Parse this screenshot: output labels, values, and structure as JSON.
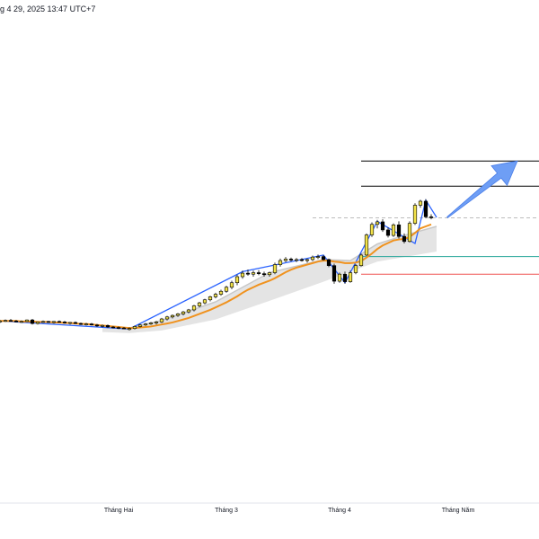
{
  "header": {
    "timestamp": "g 4 29, 2025 13:47 UTC+7"
  },
  "colors": {
    "candle_up": "#f2e24a",
    "candle_down": "#000000",
    "wick": "#000000",
    "ema_line": "#f0921e",
    "band_fill": "#d9d9d9",
    "band_edge": "#c8c8c8",
    "zigzag": "#2962ff",
    "level_black": "#000000",
    "level_green": "#26a69a",
    "level_red": "#ef5350",
    "level_dashed": "#bdbdbd",
    "arrow_fill": "#6e9ef5"
  },
  "chart_data": {
    "type": "candlestick",
    "x_axis_labels": [
      {
        "label": "Tháng Hai",
        "index": 22
      },
      {
        "label": "Tháng 3",
        "index": 42
      },
      {
        "label": "Tháng 4",
        "index": 63
      },
      {
        "label": "Tháng Năm",
        "index": 85
      }
    ],
    "ylim": [
      0,
      100
    ],
    "candles": [
      [
        36.0,
        36.4,
        35.8,
        36.2
      ],
      [
        36.2,
        36.5,
        36.0,
        36.3
      ],
      [
        36.3,
        36.6,
        36.1,
        36.2
      ],
      [
        36.2,
        36.4,
        35.9,
        36.0
      ],
      [
        36.0,
        36.3,
        35.8,
        36.1
      ],
      [
        36.1,
        36.5,
        36.0,
        36.4
      ],
      [
        36.4,
        36.6,
        35.5,
        35.7
      ],
      [
        35.7,
        36.1,
        35.5,
        36.0
      ],
      [
        36.0,
        36.3,
        35.8,
        36.1
      ],
      [
        36.1,
        36.2,
        35.8,
        35.9
      ],
      [
        35.9,
        36.2,
        35.7,
        36.1
      ],
      [
        36.1,
        36.3,
        35.9,
        36.0
      ],
      [
        36.0,
        36.2,
        35.7,
        35.8
      ],
      [
        35.8,
        36.0,
        35.5,
        35.9
      ],
      [
        35.9,
        36.1,
        35.6,
        35.7
      ],
      [
        35.7,
        35.9,
        35.4,
        35.5
      ],
      [
        35.5,
        35.8,
        35.3,
        35.6
      ],
      [
        35.6,
        35.8,
        35.3,
        35.4
      ],
      [
        35.4,
        35.6,
        35.0,
        35.2
      ],
      [
        35.2,
        35.5,
        34.9,
        35.3
      ],
      [
        35.3,
        35.5,
        34.8,
        35.0
      ],
      [
        35.0,
        35.2,
        34.7,
        34.9
      ],
      [
        34.9,
        35.1,
        34.6,
        34.8
      ],
      [
        34.8,
        35.0,
        34.6,
        34.7
      ],
      [
        34.5,
        34.9,
        34.3,
        34.7
      ],
      [
        34.7,
        35.3,
        34.5,
        35.1
      ],
      [
        35.1,
        35.6,
        34.9,
        35.4
      ],
      [
        35.4,
        35.8,
        35.2,
        35.6
      ],
      [
        35.6,
        36.0,
        35.4,
        35.8
      ],
      [
        35.8,
        36.2,
        35.5,
        36.0
      ],
      [
        36.0,
        36.8,
        35.8,
        36.6
      ],
      [
        36.6,
        37.2,
        36.3,
        37.0
      ],
      [
        37.0,
        37.5,
        36.7,
        37.3
      ],
      [
        37.3,
        37.8,
        37.0,
        37.6
      ],
      [
        37.6,
        38.2,
        37.3,
        38.0
      ],
      [
        38.0,
        38.6,
        37.7,
        38.4
      ],
      [
        38.4,
        39.4,
        38.1,
        39.2
      ],
      [
        39.2,
        40.0,
        38.9,
        39.8
      ],
      [
        39.8,
        40.6,
        39.5,
        40.4
      ],
      [
        40.4,
        41.2,
        40.1,
        41.0
      ],
      [
        41.0,
        41.8,
        40.7,
        41.5
      ],
      [
        41.5,
        42.4,
        41.2,
        42.1
      ],
      [
        42.1,
        43.2,
        41.8,
        42.9
      ],
      [
        42.9,
        44.2,
        42.5,
        43.8
      ],
      [
        43.8,
        45.4,
        43.3,
        45.0
      ],
      [
        45.0,
        46.2,
        44.6,
        45.7
      ],
      [
        45.7,
        46.4,
        45.2,
        45.5
      ],
      [
        45.5,
        46.2,
        45.0,
        45.8
      ],
      [
        45.8,
        46.3,
        45.3,
        45.6
      ],
      [
        45.6,
        46.0,
        45.0,
        45.4
      ],
      [
        45.4,
        46.0,
        45.0,
        45.8
      ],
      [
        45.8,
        47.8,
        45.5,
        47.4
      ],
      [
        47.4,
        48.6,
        47.0,
        48.2
      ],
      [
        48.2,
        48.9,
        47.9,
        48.5
      ],
      [
        48.5,
        48.8,
        48.0,
        48.3
      ],
      [
        48.3,
        48.7,
        47.9,
        48.4
      ],
      [
        48.4,
        48.7,
        48.0,
        48.2
      ],
      [
        48.2,
        48.6,
        47.8,
        48.4
      ],
      [
        48.4,
        49.2,
        48.1,
        48.9
      ],
      [
        48.9,
        49.4,
        48.5,
        49.0
      ],
      [
        49.0,
        49.3,
        48.2,
        48.4
      ],
      [
        48.4,
        48.6,
        46.9,
        47.2
      ],
      [
        47.2,
        47.6,
        43.6,
        44.1
      ],
      [
        44.1,
        45.8,
        43.8,
        45.5
      ],
      [
        45.5,
        46.0,
        43.6,
        44.0
      ],
      [
        44.0,
        46.2,
        43.8,
        45.8
      ],
      [
        45.8,
        47.5,
        45.5,
        47.2
      ],
      [
        47.2,
        49.6,
        47.0,
        49.3
      ],
      [
        49.3,
        53.6,
        49.1,
        53.3
      ],
      [
        53.3,
        55.8,
        52.9,
        55.4
      ],
      [
        55.4,
        56.3,
        54.6,
        55.9
      ],
      [
        55.9,
        56.4,
        53.9,
        54.3
      ],
      [
        54.3,
        54.8,
        52.8,
        53.2
      ],
      [
        53.2,
        55.6,
        52.9,
        55.3
      ],
      [
        55.3,
        56.0,
        52.6,
        53.0
      ],
      [
        53.0,
        53.6,
        51.6,
        52.0
      ],
      [
        52.0,
        56.0,
        51.8,
        55.6
      ],
      [
        55.6,
        59.6,
        55.3,
        59.2
      ],
      [
        59.2,
        60.3,
        58.7,
        60.0
      ],
      [
        60.0,
        60.4,
        56.6,
        56.9
      ],
      [
        56.9,
        57.4,
        56.4,
        56.8
      ]
    ],
    "ema": [
      36.2,
      36.2,
      36.2,
      36.2,
      36.1,
      36.1,
      36.1,
      36.0,
      36.0,
      36.0,
      35.9,
      35.9,
      35.8,
      35.8,
      35.7,
      35.6,
      35.6,
      35.5,
      35.4,
      35.3,
      35.2,
      35.1,
      35.0,
      34.9,
      34.8,
      34.8,
      34.9,
      35.0,
      35.1,
      35.3,
      35.5,
      35.7,
      35.9,
      36.2,
      36.5,
      36.8,
      37.2,
      37.6,
      38.0,
      38.4,
      38.9,
      39.4,
      39.9,
      40.5,
      41.1,
      41.8,
      42.4,
      42.9,
      43.4,
      43.8,
      44.2,
      44.7,
      45.3,
      45.9,
      46.4,
      46.8,
      47.1,
      47.4,
      47.7,
      48.0,
      48.2,
      48.2,
      48.0,
      47.9,
      47.7,
      47.7,
      47.8,
      48.1,
      48.8,
      49.6,
      50.5,
      51.2,
      51.7,
      52.2,
      52.4,
      52.5,
      52.9,
      53.7,
      54.6,
      55.0,
      55.4
    ],
    "band_upper": [
      [
        19,
        35.0
      ],
      [
        24,
        34.8
      ],
      [
        30,
        36.3
      ],
      [
        40,
        40.0
      ],
      [
        50,
        45.8
      ],
      [
        60,
        48.4
      ],
      [
        65,
        48.2
      ],
      [
        70,
        51.5
      ],
      [
        75,
        53.2
      ],
      [
        81,
        55.0
      ]
    ],
    "band_lower": [
      [
        19,
        34.0
      ],
      [
        24,
        33.8
      ],
      [
        30,
        34.3
      ],
      [
        40,
        36.5
      ],
      [
        50,
        40.2
      ],
      [
        60,
        44.0
      ],
      [
        65,
        46.0
      ],
      [
        70,
        48.0
      ],
      [
        75,
        48.9
      ],
      [
        81,
        50.0
      ]
    ],
    "zigzag": [
      [
        0,
        36.2
      ],
      [
        24,
        34.6
      ],
      [
        45,
        46.0
      ],
      [
        60,
        49.3
      ],
      [
        64,
        43.8
      ],
      [
        70,
        56.0
      ],
      [
        77,
        51.6
      ],
      [
        79,
        60.2
      ],
      [
        81,
        56.8
      ]
    ],
    "levels": [
      {
        "name": "black-level-top",
        "y": 68.0,
        "from": 67,
        "to": 100,
        "color_key": "level_black"
      },
      {
        "name": "black-level-mid",
        "y": 63.0,
        "from": 67,
        "to": 100,
        "color_key": "level_black"
      },
      {
        "name": "dashed-current-level",
        "y": 56.7,
        "from": 58,
        "to": 100,
        "color_key": "level_dashed",
        "dashed": true
      },
      {
        "name": "green-support-level",
        "y": 49.0,
        "from": 67,
        "to": 100,
        "color_key": "level_green"
      },
      {
        "name": "red-support-level",
        "y": 45.5,
        "from": 67,
        "to": 100,
        "color_key": "level_red"
      }
    ],
    "arrow": {
      "from": [
        83,
        56.8
      ],
      "to": [
        96,
        68.0
      ]
    }
  }
}
